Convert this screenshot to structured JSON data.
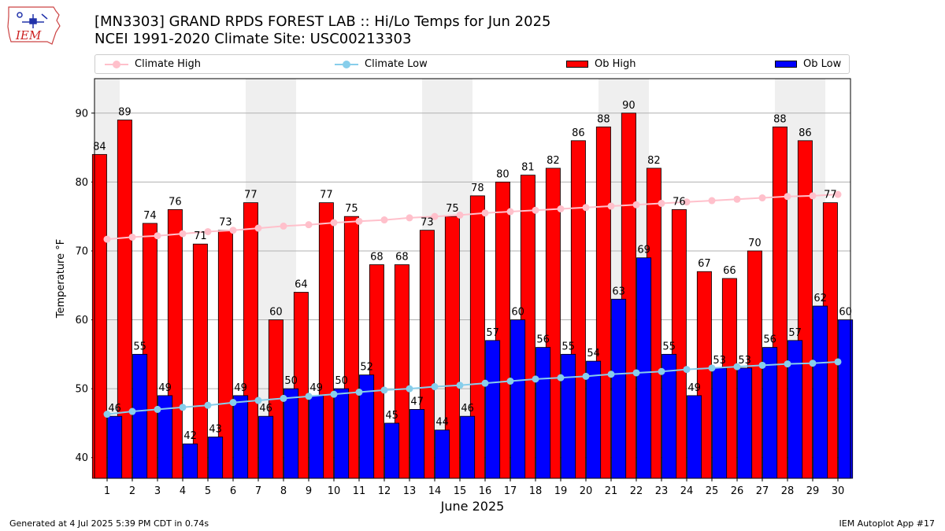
{
  "header": {
    "title_line1": "[MN3303] GRAND RPDS FOREST LAB :: Hi/Lo Temps for Jun 2025",
    "title_line2": "NCEI 1991-2020 Climate Site: USC00213303",
    "logo_text": "IEM"
  },
  "legend": {
    "climate_high": "Climate High",
    "climate_low": "Climate Low",
    "ob_high": "Ob High",
    "ob_low": "Ob Low"
  },
  "footer": {
    "generated": "Generated at 4 Jul 2025 5:39 PM CDT in 0.74s",
    "app": "IEM Autoplot App #17"
  },
  "colors": {
    "ob_high": "#ff0000",
    "ob_low": "#0000ff",
    "climate_high": "#ffc0cb",
    "climate_low": "#87ceeb",
    "weekend_band": "#efefef",
    "grid": "#b0b0b0"
  },
  "chart_data": {
    "type": "bar",
    "xlabel": "June 2025",
    "ylabel": "Temperature °F",
    "ylim": [
      37,
      95
    ],
    "yticks": [
      40,
      50,
      60,
      70,
      80,
      90
    ],
    "grid": "horizontal",
    "legend_position": "top",
    "categories": [
      "1",
      "2",
      "3",
      "4",
      "5",
      "6",
      "7",
      "8",
      "9",
      "10",
      "11",
      "12",
      "13",
      "14",
      "15",
      "16",
      "17",
      "18",
      "19",
      "20",
      "21",
      "22",
      "23",
      "24",
      "25",
      "26",
      "27",
      "28",
      "29",
      "30"
    ],
    "weekend_days": [
      1,
      7,
      8,
      14,
      15,
      21,
      22,
      28,
      29
    ],
    "series": [
      {
        "name": "Ob High",
        "type": "bar",
        "values": [
          84,
          89,
          74,
          76,
          71,
          73,
          77,
          60,
          64,
          77,
          75,
          68,
          68,
          73,
          75,
          78,
          80,
          81,
          82,
          86,
          88,
          90,
          82,
          76,
          67,
          66,
          70,
          88,
          86,
          77
        ]
      },
      {
        "name": "Ob Low",
        "type": "bar",
        "values": [
          46,
          55,
          49,
          42,
          43,
          49,
          46,
          50,
          49,
          50,
          52,
          45,
          47,
          44,
          46,
          57,
          60,
          56,
          55,
          54,
          63,
          69,
          55,
          49,
          53,
          53,
          56,
          57,
          62,
          60
        ]
      },
      {
        "name": "Climate High",
        "type": "line",
        "values": [
          71.7,
          72.0,
          72.2,
          72.5,
          72.8,
          73.0,
          73.3,
          73.6,
          73.8,
          74.1,
          74.3,
          74.5,
          74.8,
          75.0,
          75.2,
          75.5,
          75.7,
          75.9,
          76.1,
          76.3,
          76.5,
          76.7,
          76.9,
          77.1,
          77.3,
          77.5,
          77.7,
          77.9,
          78.0,
          78.2
        ]
      },
      {
        "name": "Climate Low",
        "type": "line",
        "values": [
          46.3,
          46.7,
          47.0,
          47.3,
          47.6,
          48.0,
          48.3,
          48.6,
          48.9,
          49.2,
          49.5,
          49.8,
          50.0,
          50.3,
          50.5,
          50.8,
          51.1,
          51.4,
          51.6,
          51.8,
          52.1,
          52.3,
          52.5,
          52.8,
          53.0,
          53.2,
          53.4,
          53.6,
          53.7,
          53.9
        ]
      }
    ]
  }
}
